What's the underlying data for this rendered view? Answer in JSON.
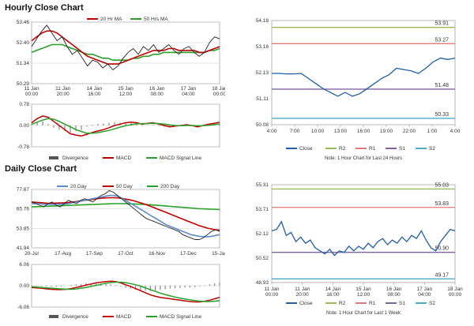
{
  "sections": {
    "hourly_title": "Hourly Close Chart",
    "daily_title": "Daily Close Chart"
  },
  "colors": {
    "close": "#1f5fa8",
    "ma20": "#c00000",
    "ma50": "#2aa02a",
    "r2": "#9bbb59",
    "r1": "#e07a7a",
    "s1": "#8064a2",
    "s2": "#4bacc6",
    "divergence": "#888888",
    "grid": "#cccccc",
    "axis": "#888888"
  },
  "chart_data": [
    {
      "id": "hourly_price",
      "type": "line",
      "title": "",
      "legend": [
        "20 Hr MA",
        "50 Hrs MA"
      ],
      "yticks": [
        "53.46",
        "52.40",
        "51.34",
        "50.29"
      ],
      "ylim": [
        50.29,
        53.46
      ],
      "xticks": [
        "11 Jan\n00:00",
        "11 Jan\n20:00",
        "14 Jan\n16:00",
        "15 Jan\n12:00",
        "16 Jan\n08:00",
        "17 Jan\n04:00",
        "18 Jan\n00:00"
      ],
      "close": [
        52.2,
        52.6,
        53.0,
        53.3,
        52.9,
        52.5,
        52.7,
        52.2,
        51.8,
        52.0,
        51.6,
        51.2,
        51.5,
        51.4,
        51.1,
        51.3,
        51.0,
        51.2,
        51.6,
        51.9,
        52.1,
        51.8,
        52.2,
        52.0,
        52.3,
        51.9,
        52.1,
        52.3,
        52.0,
        51.8,
        52.1,
        52.2,
        51.9,
        51.7,
        51.9,
        52.4,
        52.7,
        52.6
      ],
      "ma20": [
        52.5,
        52.7,
        52.9,
        53.0,
        53.0,
        52.9,
        52.7,
        52.5,
        52.3,
        52.1,
        51.9,
        51.7,
        51.6,
        51.5,
        51.4,
        51.3,
        51.3,
        51.3,
        51.4,
        51.5,
        51.6,
        51.7,
        51.8,
        51.9,
        52.0,
        52.0,
        52.0,
        52.1,
        52.1,
        52.0,
        52.0,
        52.0,
        52.0,
        51.9,
        51.9,
        52.0,
        52.1,
        52.2
      ],
      "ma50": [
        51.9,
        52.0,
        52.1,
        52.2,
        52.3,
        52.3,
        52.3,
        52.2,
        52.1,
        52.0,
        51.9,
        51.8,
        51.8,
        51.7,
        51.6,
        51.6,
        51.5,
        51.5,
        51.5,
        51.5,
        51.6,
        51.6,
        51.7,
        51.7,
        51.8,
        51.8,
        51.9,
        51.9,
        51.9,
        51.9,
        51.9,
        51.9,
        51.9,
        51.9,
        51.9,
        52.0,
        52.0,
        52.1
      ]
    },
    {
      "id": "hourly_macd",
      "type": "line",
      "yticks": [
        "0.78",
        "0.00",
        "-0.78"
      ],
      "ylim": [
        -0.78,
        0.78
      ],
      "legend": [
        "Divergence",
        "MACD",
        "MACD Signal Line"
      ],
      "macd": [
        0.1,
        0.25,
        0.35,
        0.3,
        0.15,
        0.0,
        -0.15,
        -0.3,
        -0.35,
        -0.38,
        -0.32,
        -0.25,
        -0.2,
        -0.15,
        -0.08,
        0.0,
        0.05,
        0.1,
        0.12,
        0.1,
        0.05,
        0.08,
        0.1,
        0.05,
        0.0,
        -0.05,
        -0.02,
        0.0,
        0.03,
        0.0,
        -0.05,
        0.0,
        0.05,
        0.08,
        0.12
      ],
      "signal": [
        0.05,
        0.12,
        0.2,
        0.25,
        0.23,
        0.15,
        0.05,
        -0.05,
        -0.15,
        -0.22,
        -0.28,
        -0.28,
        -0.26,
        -0.22,
        -0.18,
        -0.12,
        -0.06,
        -0.01,
        0.03,
        0.06,
        0.07,
        0.07,
        0.08,
        0.07,
        0.05,
        0.02,
        0.0,
        -0.01,
        0.0,
        0.0,
        -0.01,
        -0.01,
        0.01,
        0.03,
        0.06
      ]
    },
    {
      "id": "hourly_levels",
      "type": "line",
      "yticks": [
        "54.18",
        "53.16",
        "52.13",
        "51.11",
        "50.08"
      ],
      "ylim": [
        50.08,
        54.18
      ],
      "xticks": [
        "4:00",
        "7:00",
        "10:00",
        "13:00",
        "16:00",
        "19:00",
        "22:00",
        "1:00",
        "4:00"
      ],
      "close": [
        52.1,
        52.1,
        52.08,
        52.08,
        52.1,
        51.9,
        51.7,
        51.5,
        51.35,
        51.2,
        51.35,
        51.2,
        51.3,
        51.5,
        51.7,
        51.9,
        52.05,
        52.3,
        52.25,
        52.2,
        52.1,
        52.3,
        52.55,
        52.7,
        52.65,
        52.7
      ],
      "levels": {
        "R2": 53.91,
        "R1": 53.27,
        "S1": 51.48,
        "S2": 50.33
      },
      "level_labels": [
        "53.91",
        "53.27",
        "51.48",
        "50.33"
      ],
      "legend": [
        "Close",
        "R2",
        "R1",
        "S1",
        "S2"
      ],
      "note": "Note: 1 Hour Chart for Last 24 Hours"
    },
    {
      "id": "daily_price",
      "type": "line",
      "legend": [
        "20 Day",
        "50 Day",
        "200 Day"
      ],
      "yticks": [
        "77.67",
        "65.76",
        "53.85",
        "41.94"
      ],
      "ylim": [
        41.94,
        77.67
      ],
      "xticks": [
        "20-Jul",
        "17-Aug",
        "17-Sep",
        "17-Oct",
        "16-Nov",
        "17-Dec",
        "15-Jan"
      ],
      "close": [
        70,
        69,
        68,
        67,
        69,
        70,
        68,
        67,
        69,
        71,
        70,
        69,
        71,
        72,
        71,
        70,
        72,
        74,
        75,
        77,
        76,
        74,
        72,
        70,
        68,
        66,
        64,
        62,
        60,
        59,
        58,
        57,
        56,
        55,
        54,
        53,
        52,
        50,
        49,
        48,
        47,
        47,
        48,
        50,
        52,
        53,
        52
      ],
      "ma20": [
        69,
        69,
        69,
        68.5,
        68.5,
        68.5,
        68.6,
        68.7,
        68.8,
        69,
        69.5,
        70,
        70.5,
        71,
        71.5,
        72,
        72.5,
        73,
        73.5,
        74,
        74,
        73.5,
        72.5,
        71,
        69.5,
        68,
        66.5,
        65,
        63.5,
        62,
        60.5,
        59,
        57.5,
        56,
        55,
        54,
        53,
        52,
        51,
        50,
        49.5,
        49,
        48.8,
        48.7,
        49,
        49.5,
        50
      ],
      "ma50": [
        70,
        69.8,
        69.6,
        69.4,
        69.2,
        69.2,
        69.3,
        69.4,
        69.5,
        69.7,
        70,
        70.3,
        70.6,
        71,
        71.3,
        71.6,
        72,
        72.3,
        72.5,
        72.6,
        72.6,
        72.5,
        72.2,
        71.8,
        71.3,
        70.7,
        70,
        69.2,
        68.4,
        67.5,
        66.5,
        65.5,
        64.5,
        63.5,
        62.5,
        61.5,
        60.5,
        59.5,
        58.5,
        57.5,
        56.5,
        55.5,
        54.8,
        54,
        53.5,
        53,
        52.8
      ],
      "ma200": [
        67,
        67.1,
        67.2,
        67.3,
        67.4,
        67.5,
        67.6,
        67.7,
        67.8,
        67.9,
        68,
        68.1,
        68.2,
        68.3,
        68.4,
        68.5,
        68.6,
        68.7,
        68.8,
        68.9,
        69,
        69,
        69,
        69,
        68.9,
        68.8,
        68.7,
        68.6,
        68.5,
        68.3,
        68.1,
        67.9,
        67.7,
        67.5,
        67.3,
        67.1,
        66.9,
        66.7,
        66.5,
        66.3,
        66.1,
        65.9,
        65.8,
        65.7,
        65.6,
        65.5,
        65.4
      ]
    },
    {
      "id": "daily_macd",
      "type": "line",
      "yticks": [
        "6.06",
        "0.00",
        "-6.06"
      ],
      "ylim": [
        -6.06,
        6.06
      ],
      "legend": [
        "Divergence",
        "MACD",
        "MACD Signal Line"
      ],
      "macd": [
        -0.5,
        -0.6,
        -0.7,
        -0.9,
        -1.0,
        -1.1,
        -1.1,
        -1.0,
        -0.8,
        -0.5,
        -0.2,
        0.2,
        0.5,
        0.8,
        1.0,
        1.2,
        1.3,
        1.2,
        0.8,
        0.3,
        -0.2,
        -0.8,
        -1.4,
        -2.0,
        -2.6,
        -3.0,
        -3.3,
        -3.5,
        -3.7,
        -3.9,
        -4.1,
        -4.3,
        -4.5,
        -4.6,
        -4.6,
        -4.4,
        -4.1,
        -3.7,
        -3.3
      ],
      "signal": [
        -0.3,
        -0.4,
        -0.5,
        -0.6,
        -0.7,
        -0.8,
        -0.9,
        -1.0,
        -1.0,
        -0.9,
        -0.7,
        -0.5,
        -0.2,
        0.1,
        0.4,
        0.7,
        0.9,
        1.0,
        1.0,
        0.9,
        0.6,
        0.3,
        -0.1,
        -0.6,
        -1.1,
        -1.6,
        -2.1,
        -2.5,
        -2.9,
        -3.2,
        -3.5,
        -3.8,
        -4.0,
        -4.2,
        -4.4,
        -4.5,
        -4.5,
        -4.4,
        -4.2
      ]
    },
    {
      "id": "daily_levels",
      "type": "line",
      "yticks": [
        "55.31",
        "53.71",
        "52.12",
        "50.52",
        "48.93"
      ],
      "ylim": [
        48.93,
        55.31
      ],
      "xticks": [
        "11 Jan\n00:00",
        "11 Jan\n20:00",
        "14 Jan\n16:00",
        "15 Jan\n12:00",
        "16 Jan\n08:00",
        "17 Jan\n04:00",
        "18 Jan\n00:00"
      ],
      "close": [
        52.3,
        52.4,
        52.9,
        52.0,
        52.2,
        51.6,
        51.9,
        51.5,
        51.7,
        51.2,
        51.0,
        50.8,
        51.1,
        50.7,
        51.0,
        50.9,
        51.3,
        51.0,
        51.3,
        51.1,
        51.5,
        51.2,
        51.6,
        51.8,
        51.4,
        51.7,
        51.5,
        51.9,
        51.6,
        52.0,
        51.8,
        52.3,
        51.7,
        51.2,
        51.0,
        51.6,
        52.0,
        52.4,
        52.3
      ],
      "levels": {
        "R2": 55.03,
        "R1": 53.83,
        "S1": 50.9,
        "S2": 49.17
      },
      "level_labels": [
        "55.03",
        "53.83",
        "50.90",
        "49.17"
      ],
      "legend": [
        "Close",
        "R2",
        "R1",
        "S1",
        "S2"
      ],
      "note": "Note: 1 Hour Chart for Last 1 Week"
    }
  ]
}
